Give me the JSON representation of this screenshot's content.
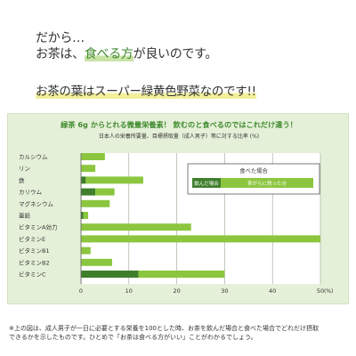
{
  "headline": {
    "line1": "だから…",
    "line2_part1": "お茶は、",
    "line2_highlight": "食べる方",
    "line2_part2": "が良いのです。",
    "line3_part1": "お茶の葉は",
    "line3_highlight": "スーパー緑黄色野菜",
    "line3_part2": "なのです!!"
  },
  "chart_data": {
    "type": "bar",
    "orientation": "horizontal",
    "stacked": true,
    "title": "緑茶 6g からとれる微量栄養素！ 飲むのと食べるのではこれだけ違う！",
    "subtitle": "日本人の栄養所要量、目標摂取量（成人男子）等に対する比率 (%)",
    "categories": [
      "カルシウム",
      "リン",
      "鉄",
      "カリウム",
      "マグネシウム",
      "亜鉛",
      "ビタミンA効力",
      "ビタミンE",
      "ビタミンB1",
      "ビタミンB2",
      "ビタミンC"
    ],
    "series": [
      {
        "name": "飲んだ場合",
        "color": "#3f7f2c",
        "values": [
          0,
          0,
          1,
          3,
          0,
          0.5,
          0,
          0,
          0,
          0,
          12
        ]
      },
      {
        "name": "茶がらに残った分",
        "color": "#8cc63f",
        "values": [
          5,
          3,
          12,
          4,
          6,
          1,
          23,
          50,
          2,
          6.5,
          18
        ]
      }
    ],
    "legend_title": "食べた場合",
    "legend_position": "top-right",
    "xlim": [
      0,
      50
    ],
    "xticks": [
      0,
      10,
      20,
      30,
      40,
      50
    ],
    "x_unit_label": "(%)",
    "grid": "vertical"
  },
  "footnote": "※上の図は、成人男子が一日に必要とする栄養を100とした時、お茶を飲んだ場合と食べた場合でどれだけ摂取\nできるかを示したものです。ひとめで「お茶は食べる方がいい」ことがわかるでしょう。"
}
